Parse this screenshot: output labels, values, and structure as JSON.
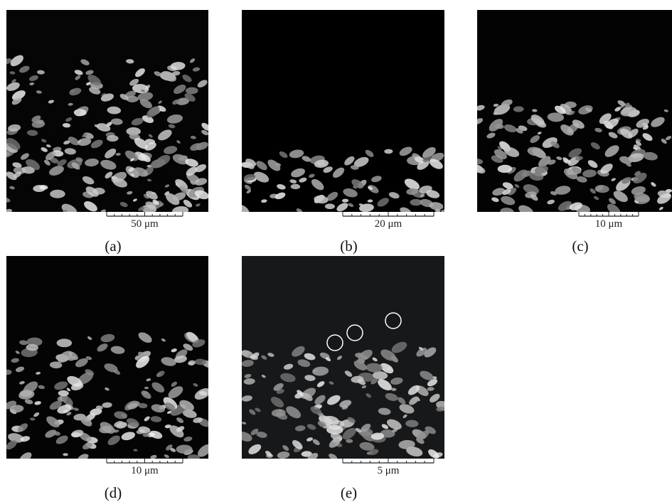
{
  "panels": [
    {
      "label": "(a)",
      "scale_bar": "50 μm"
    },
    {
      "label": "(b)",
      "scale_bar": "20 μm"
    },
    {
      "label": "(c)",
      "scale_bar": "10 μm"
    },
    {
      "label": "(d)",
      "scale_bar": "10 μm"
    },
    {
      "label": "(e)",
      "scale_bar": "5 μm"
    }
  ]
}
